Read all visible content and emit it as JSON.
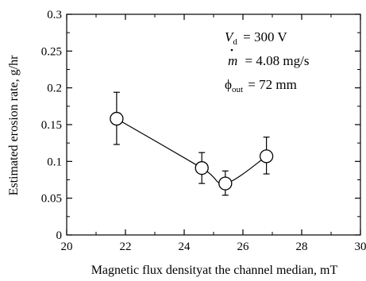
{
  "chart_data": {
    "type": "scatter",
    "xlabel": "Magnetic flux densityat the channel median, mT",
    "ylabel": "Estimated erosion rate, g/hr",
    "xlim": [
      20,
      30
    ],
    "ylim": [
      0,
      0.3
    ],
    "x_ticks": [
      "20",
      "22",
      "24",
      "26",
      "28",
      "30"
    ],
    "y_ticks": [
      "0",
      "0.05",
      "0.1",
      "0.15",
      "0.2",
      "0.25",
      "0.3"
    ],
    "points": [
      {
        "x": 21.7,
        "y": 0.158,
        "err_low": 0.123,
        "err_high": 0.194
      },
      {
        "x": 24.6,
        "y": 0.091,
        "err_low": 0.07,
        "err_high": 0.112
      },
      {
        "x": 25.4,
        "y": 0.07,
        "err_low": 0.054,
        "err_high": 0.087
      },
      {
        "x": 26.8,
        "y": 0.107,
        "err_low": 0.083,
        "err_high": 0.133
      }
    ],
    "fit_curve": true,
    "grid": false,
    "annotations": {
      "vd_symbol": "V",
      "vd_sub": "d",
      "vd_value": " = 300 V",
      "mdot_symbol": "m",
      "mdot_value": " = 4.08 mg/s",
      "phi_symbol": "ϕ",
      "phi_sub": "out",
      "phi_value": " = 72 mm"
    }
  }
}
